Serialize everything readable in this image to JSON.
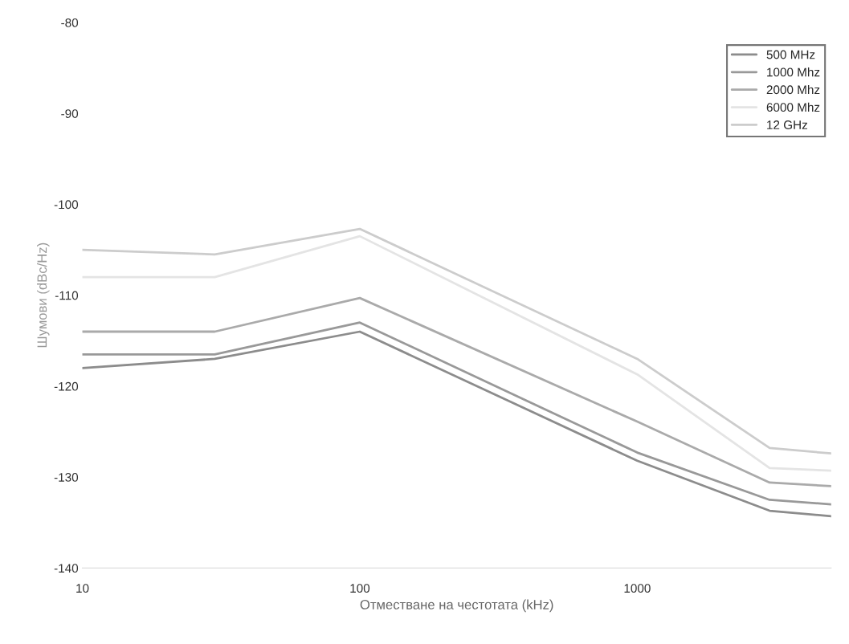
{
  "chart_data": {
    "type": "line",
    "xlabel": "Отместване на честотата (kHz)",
    "ylabel": "Шумови (dBc/Hz)",
    "x": [
      10,
      30,
      100,
      1000,
      3000,
      5000
    ],
    "series": [
      {
        "name": "500 MHz",
        "color": "#8c8c8c",
        "values": [
          -118,
          -117,
          -114,
          -128.2,
          -133.7,
          -134.3
        ]
      },
      {
        "name": "1000 Mhz",
        "color": "#999999",
        "values": [
          -116.5,
          -116.5,
          -113,
          -127.3,
          -132.5,
          -133
        ]
      },
      {
        "name": "2000 Mhz",
        "color": "#aaaaaa",
        "values": [
          -114,
          -114,
          -110.3,
          -123.9,
          -130.6,
          -131
        ]
      },
      {
        "name": "6000 Mhz",
        "color": "#e4e4e4",
        "values": [
          -108,
          -108,
          -103.5,
          -118.7,
          -129,
          -129.3
        ]
      },
      {
        "name": "12 GHz",
        "color": "#cccccc",
        "values": [
          -105,
          -105.5,
          -102.7,
          -117,
          -126.8,
          -127.4
        ]
      }
    ],
    "log": "x",
    "xlim": [
      10,
      5000
    ],
    "ylim": [
      -140,
      -80
    ],
    "xticks": [
      10,
      100,
      1000
    ],
    "yticks": [
      -80,
      -90,
      -100,
      -110,
      -120,
      -130,
      -140
    ],
    "grid": false,
    "legend": "top right"
  }
}
